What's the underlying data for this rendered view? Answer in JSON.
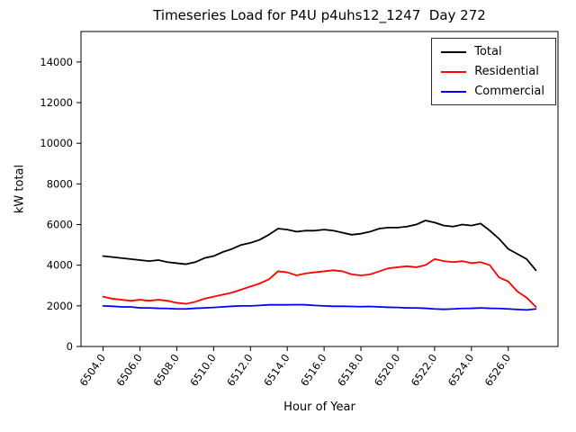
{
  "chart_data": {
    "type": "line",
    "title": "Timeseries Load for P4U p4uhs12_1247  Day 272",
    "xlabel": "Hour of Year",
    "ylabel": "kW total",
    "grid": false,
    "legend_position": "upper right",
    "xlim": [
      6502.8,
      6528.7
    ],
    "ylim": [
      0,
      15500
    ],
    "x_ticks": [
      6504,
      6506,
      6508,
      6510,
      6512,
      6514,
      6516,
      6518,
      6520,
      6522,
      6524,
      6526
    ],
    "x_tick_labels": [
      "6504.0",
      "6506.0",
      "6508.0",
      "6510.0",
      "6512.0",
      "6514.0",
      "6516.0",
      "6518.0",
      "6520.0",
      "6522.0",
      "6524.0",
      "6526.0"
    ],
    "y_ticks": [
      0,
      2000,
      4000,
      6000,
      8000,
      10000,
      12000,
      14000
    ],
    "y_tick_labels": [
      "0",
      "2000",
      "4000",
      "6000",
      "8000",
      "10000",
      "12000",
      "14000"
    ],
    "x": [
      6504.0,
      6504.5,
      6505.0,
      6505.5,
      6506.0,
      6506.5,
      6507.0,
      6507.5,
      6508.0,
      6508.5,
      6509.0,
      6509.5,
      6510.0,
      6510.5,
      6511.0,
      6511.5,
      6512.0,
      6512.5,
      6513.0,
      6513.5,
      6514.0,
      6514.5,
      6515.0,
      6515.5,
      6516.0,
      6516.5,
      6517.0,
      6517.5,
      6518.0,
      6518.5,
      6519.0,
      6519.5,
      6520.0,
      6520.5,
      6521.0,
      6521.5,
      6522.0,
      6522.5,
      6523.0,
      6523.5,
      6524.0,
      6524.5,
      6525.0,
      6525.5,
      6526.0,
      6526.5,
      6527.0,
      6527.5
    ],
    "series": [
      {
        "name": "Total",
        "color": "#000000",
        "values": [
          4450,
          4400,
          4350,
          4300,
          4250,
          4200,
          4250,
          4150,
          4100,
          4050,
          4150,
          4350,
          4450,
          4650,
          4800,
          5000,
          5100,
          5250,
          5500,
          5800,
          5750,
          5650,
          5700,
          5700,
          5750,
          5700,
          5600,
          5500,
          5550,
          5650,
          5800,
          5850,
          5850,
          5900,
          6000,
          6200,
          6100,
          5950,
          5900,
          6000,
          5950,
          6050,
          5700,
          5300,
          4800,
          4550,
          4300,
          3750
        ]
      },
      {
        "name": "Residential",
        "color": "#ff0000",
        "values": [
          2450,
          2350,
          2300,
          2250,
          2300,
          2250,
          2300,
          2250,
          2150,
          2100,
          2200,
          2350,
          2450,
          2550,
          2650,
          2800,
          2950,
          3100,
          3300,
          3700,
          3650,
          3500,
          3600,
          3650,
          3700,
          3750,
          3700,
          3550,
          3500,
          3550,
          3700,
          3850,
          3900,
          3950,
          3900,
          4000,
          4300,
          4200,
          4150,
          4200,
          4100,
          4150,
          4000,
          3400,
          3200,
          2700,
          2400,
          1950
        ]
      },
      {
        "name": "Commercial",
        "color": "#0000ff",
        "values": [
          2000,
          1980,
          1950,
          1950,
          1900,
          1900,
          1880,
          1870,
          1850,
          1850,
          1880,
          1900,
          1920,
          1950,
          1980,
          2000,
          2000,
          2020,
          2050,
          2050,
          2050,
          2060,
          2050,
          2020,
          2000,
          1980,
          1980,
          1970,
          1960,
          1970,
          1950,
          1930,
          1920,
          1900,
          1900,
          1880,
          1850,
          1830,
          1850,
          1870,
          1880,
          1900,
          1880,
          1870,
          1850,
          1820,
          1800,
          1850
        ]
      }
    ]
  }
}
